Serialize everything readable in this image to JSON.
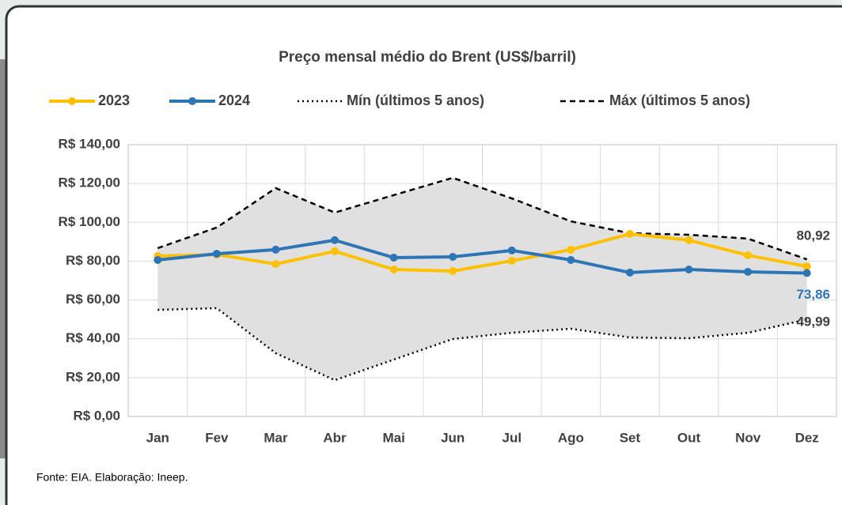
{
  "chart_data": {
    "type": "line",
    "title": "Preço mensal médio do Brent (US$/barril)",
    "categories": [
      "Jan",
      "Fev",
      "Mar",
      "Abr",
      "Mai",
      "Jun",
      "Jul",
      "Ago",
      "Set",
      "Out",
      "Nov",
      "Dez"
    ],
    "series": [
      {
        "name": "2023",
        "color": "#ffc000",
        "style": "solid",
        "values": [
          82.6,
          83.4,
          78.5,
          85.1,
          75.7,
          74.9,
          80.2,
          85.9,
          94.0,
          90.8,
          83.0,
          77.3
        ]
      },
      {
        "name": "2024",
        "color": "#2e75b6",
        "style": "solid",
        "values": [
          80.6,
          83.8,
          85.9,
          90.8,
          81.8,
          82.2,
          85.5,
          80.6,
          74.1,
          75.7,
          74.5,
          73.86
        ],
        "value_labels": [
          null,
          null,
          null,
          null,
          null,
          null,
          null,
          null,
          null,
          null,
          null,
          "73,86"
        ]
      },
      {
        "name": "Mín (últimos 5 anos)",
        "color": "#000000",
        "style": "dotted",
        "values": [
          54.9,
          55.8,
          32.6,
          18.7,
          29.3,
          39.9,
          43.1,
          45.2,
          40.7,
          40.3,
          43.1,
          49.99
        ],
        "value_labels": [
          null,
          null,
          null,
          null,
          null,
          null,
          null,
          null,
          null,
          null,
          null,
          "49,99"
        ]
      },
      {
        "name": "Máx (últimos 5 anos)",
        "color": "#000000",
        "style": "dashed",
        "values": [
          86.7,
          97.3,
          117.6,
          105.0,
          114.0,
          122.9,
          112.3,
          100.5,
          94.4,
          93.6,
          91.6,
          80.92
        ],
        "value_labels": [
          null,
          null,
          null,
          null,
          null,
          null,
          null,
          null,
          null,
          null,
          null,
          "80,92"
        ]
      }
    ],
    "band_color": "#e0e0e0",
    "ylim": [
      0,
      140
    ],
    "yticks": [
      {
        "value": 0,
        "label": "R$ 0,00"
      },
      {
        "value": 20,
        "label": "R$ 20,00"
      },
      {
        "value": 40,
        "label": "R$ 40,00"
      },
      {
        "value": 60,
        "label": "R$ 60,00"
      },
      {
        "value": 80,
        "label": "R$ 80,00"
      },
      {
        "value": 100,
        "label": "R$ 100,00"
      },
      {
        "value": 120,
        "label": "R$ 120,00"
      },
      {
        "value": 140,
        "label": "R$ 140,00"
      }
    ],
    "grid": true,
    "annotation": "Fonte: EIA. Elaboração: Ineep."
  }
}
